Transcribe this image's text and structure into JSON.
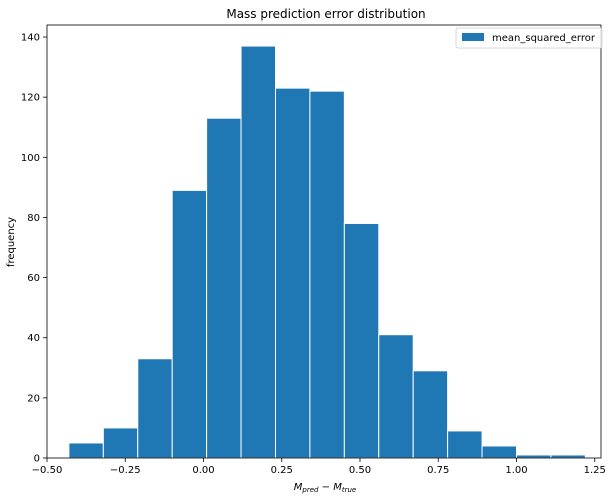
{
  "chart_data": {
    "type": "bar",
    "title": "Mass prediction error distribution",
    "xlabel_main": "M",
    "xlabel_sub1": "pred",
    "xlabel_minus": " − ",
    "xlabel_sub2": "true",
    "ylabel": "frequency",
    "legend": {
      "label": "mean_squared_error",
      "placement": "top-right"
    },
    "color": "#1f77b4",
    "xlim": [
      -0.5,
      1.27
    ],
    "ylim": [
      0,
      144
    ],
    "xticks": [
      -0.5,
      -0.25,
      0.0,
      0.25,
      0.5,
      0.75,
      1.0,
      1.25
    ],
    "xtick_labels": [
      "−0.50",
      "−0.25",
      "0.00",
      "0.25",
      "0.50",
      "0.75",
      "1.00",
      "1.25"
    ],
    "yticks": [
      0,
      20,
      40,
      60,
      80,
      100,
      120,
      140
    ],
    "ytick_labels": [
      "0",
      "20",
      "40",
      "60",
      "80",
      "100",
      "120",
      "140"
    ],
    "bin_edges": [
      -0.43,
      -0.32,
      -0.21,
      -0.1,
      0.01,
      0.12,
      0.23,
      0.34,
      0.45,
      0.56,
      0.67,
      0.78,
      0.89,
      1.0,
      1.11,
      1.22
    ],
    "values": [
      5,
      10,
      33,
      89,
      113,
      137,
      123,
      122,
      78,
      41,
      29,
      9,
      4,
      1,
      1
    ]
  }
}
